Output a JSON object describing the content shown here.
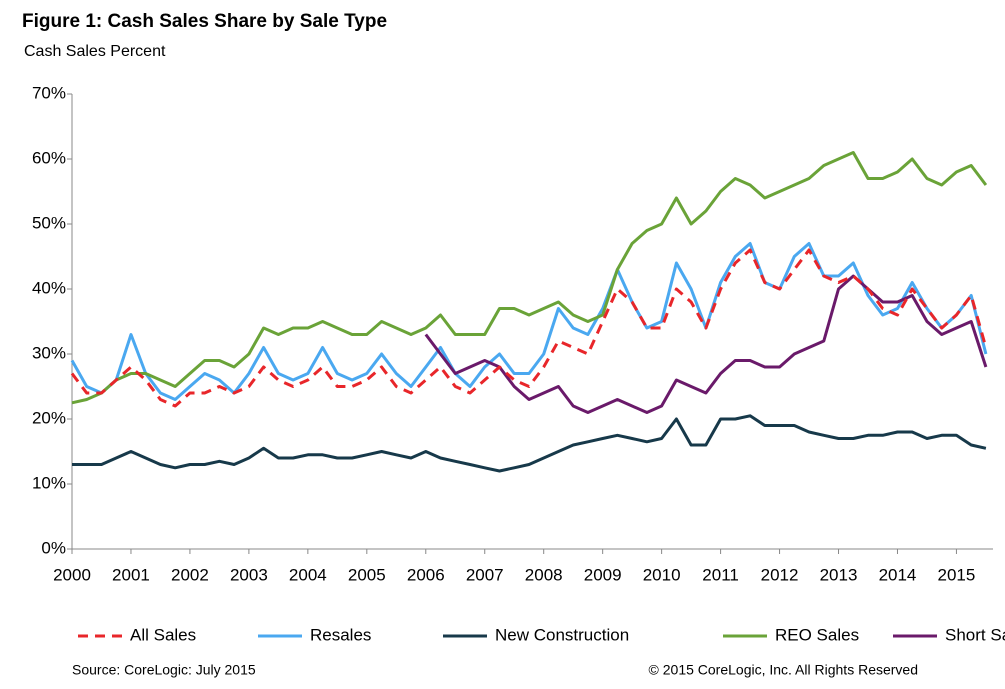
{
  "chart_data": {
    "type": "line",
    "title": "Figure 1: Cash Sales Share by Sale Type",
    "subtitle": "Cash Sales Percent",
    "source": "Source: CoreLogic: July 2015",
    "copyright": "© 2015 CoreLogic, Inc. All Rights Reserved",
    "x": [
      2000,
      2000.25,
      2000.5,
      2000.75,
      2001,
      2001.25,
      2001.5,
      2001.75,
      2002,
      2002.25,
      2002.5,
      2002.75,
      2003,
      2003.25,
      2003.5,
      2003.75,
      2004,
      2004.25,
      2004.5,
      2004.75,
      2005,
      2005.25,
      2005.5,
      2005.75,
      2006,
      2006.25,
      2006.5,
      2006.75,
      2007,
      2007.25,
      2007.5,
      2007.75,
      2008,
      2008.25,
      2008.5,
      2008.75,
      2009,
      2009.25,
      2009.5,
      2009.75,
      2010,
      2010.25,
      2010.5,
      2010.75,
      2011,
      2011.25,
      2011.5,
      2011.75,
      2012,
      2012.25,
      2012.5,
      2012.75,
      2013,
      2013.25,
      2013.5,
      2013.75,
      2014,
      2014.25,
      2014.5,
      2014.75,
      2015,
      2015.25,
      2015.5
    ],
    "xlim": [
      2000,
      2015.62
    ],
    "xticks": [
      2000,
      2001,
      2002,
      2003,
      2004,
      2005,
      2006,
      2007,
      2008,
      2009,
      2010,
      2011,
      2012,
      2013,
      2014,
      2015
    ],
    "ylim": [
      0,
      70
    ],
    "yticks": [
      {
        "value": 0,
        "label": "0%"
      },
      {
        "value": 10,
        "label": "10%"
      },
      {
        "value": 20,
        "label": "20%"
      },
      {
        "value": 30,
        "label": "30%"
      },
      {
        "value": 40,
        "label": "40%"
      },
      {
        "value": 50,
        "label": "50%"
      },
      {
        "value": 60,
        "label": "60%"
      },
      {
        "value": 70,
        "label": "70%"
      }
    ],
    "grid": false,
    "legend": "bottom",
    "series": [
      {
        "name": "All Sales",
        "color": "#e8262a",
        "dashed": true,
        "values": [
          27,
          24,
          24,
          26,
          28,
          26,
          23,
          22,
          24,
          24,
          25,
          24,
          25,
          28,
          26,
          25,
          26,
          28,
          25,
          25,
          26,
          28,
          25,
          24,
          26,
          28,
          25,
          24,
          26,
          28,
          26,
          25,
          28,
          32,
          31,
          30,
          35,
          40,
          38,
          34,
          34,
          40,
          38,
          34,
          40,
          44,
          46,
          41,
          40,
          43,
          46,
          42,
          41,
          42,
          40,
          37,
          36,
          40,
          37,
          34,
          36,
          39,
          31
        ]
      },
      {
        "name": "Resales",
        "color": "#4aa8f0",
        "values": [
          29,
          25,
          24,
          26,
          33,
          27,
          24,
          23,
          25,
          27,
          26,
          24,
          27,
          31,
          27,
          26,
          27,
          31,
          27,
          26,
          27,
          30,
          27,
          25,
          28,
          31,
          27,
          25,
          28,
          30,
          27,
          27,
          30,
          37,
          34,
          33,
          37,
          43,
          38,
          34,
          35,
          44,
          40,
          34,
          41,
          45,
          47,
          41,
          40,
          45,
          47,
          42,
          42,
          44,
          39,
          36,
          37,
          41,
          37,
          34,
          36,
          39,
          30
        ]
      },
      {
        "name": "New Construction",
        "color": "#17394a",
        "values": [
          13,
          13,
          13,
          14,
          15,
          14,
          13,
          12.5,
          13,
          13,
          13.5,
          13,
          14,
          15.5,
          14,
          14,
          14.5,
          14.5,
          14,
          14,
          14.5,
          15,
          14.5,
          14,
          15,
          14,
          13.5,
          13,
          12.5,
          12,
          12.5,
          13,
          14,
          15,
          16,
          16.5,
          17,
          17.5,
          17,
          16.5,
          17,
          20,
          16,
          16,
          20,
          20,
          20.5,
          19,
          19,
          19,
          18,
          17.5,
          17,
          17,
          17.5,
          17.5,
          18,
          18,
          17,
          17.5,
          17.5,
          16,
          15.5
        ]
      },
      {
        "name": "REO Sales",
        "color": "#6aa338",
        "values": [
          22.5,
          23,
          24,
          26,
          27,
          27,
          26,
          25,
          27,
          29,
          29,
          28,
          30,
          34,
          33,
          34,
          34,
          35,
          34,
          33,
          33,
          35,
          34,
          33,
          34,
          36,
          33,
          33,
          33,
          37,
          37,
          36,
          37,
          38,
          36,
          35,
          36,
          43,
          47,
          49,
          50,
          54,
          50,
          52,
          55,
          57,
          56,
          54,
          55,
          56,
          57,
          59,
          60,
          61,
          57,
          57,
          58,
          60,
          57,
          56,
          58,
          59,
          56
        ]
      },
      {
        "name": "Short Sales",
        "color": "#6a1a6a",
        "values": [
          null,
          null,
          null,
          null,
          null,
          null,
          null,
          null,
          null,
          null,
          null,
          null,
          null,
          null,
          null,
          null,
          null,
          null,
          null,
          null,
          null,
          null,
          null,
          null,
          33,
          30,
          27,
          28,
          29,
          28,
          25,
          23,
          24,
          25,
          22,
          21,
          22,
          23,
          22,
          21,
          22,
          26,
          25,
          24,
          27,
          29,
          29,
          28,
          28,
          30,
          31,
          32,
          40,
          42,
          40,
          38,
          38,
          39,
          35,
          33,
          34,
          35,
          28
        ]
      }
    ]
  }
}
